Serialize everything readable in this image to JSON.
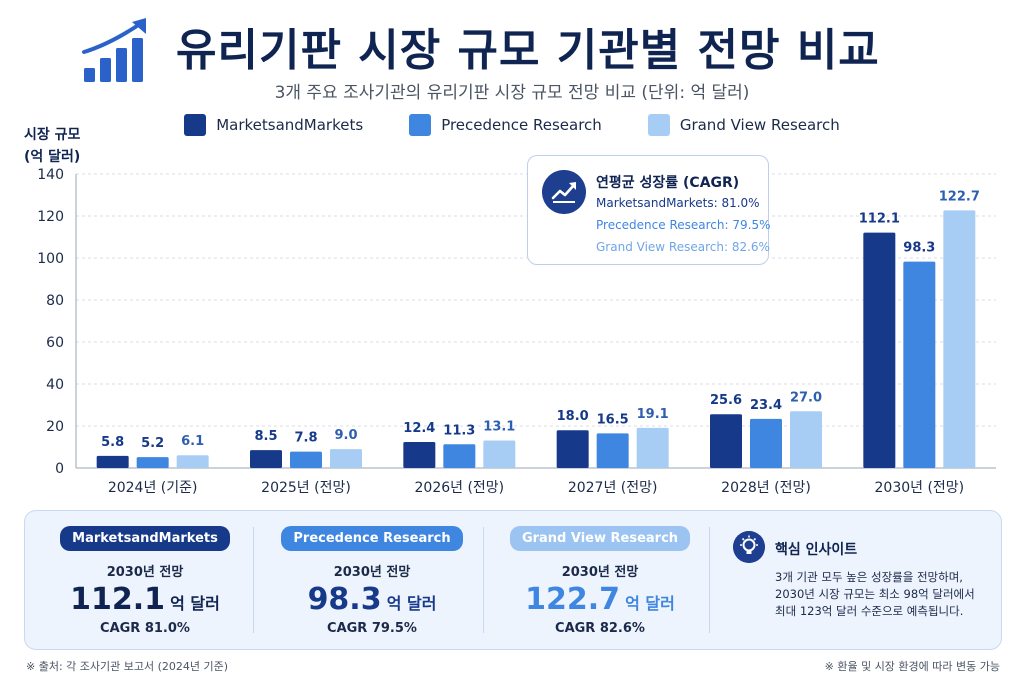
{
  "header": {
    "title": "유리기판 시장 규모 기관별 전망 비교",
    "subtitle": "3개 주요 조사기관의 유리기판 시장 규모 전망 비교 (단위: 억 달러)"
  },
  "colors": {
    "mm": "#16398a",
    "pr": "#3f86e0",
    "gv": "#a8cdf5",
    "title": "#102452"
  },
  "y_axis_label": [
    "시장 규모",
    "(억 달러)"
  ],
  "chart_data": {
    "type": "bar",
    "categories": [
      "2024년 (기준)",
      "2025년 (전망)",
      "2026년 (전망)",
      "2027년 (전망)",
      "2028년 (전망)",
      "2030년 (전망)"
    ],
    "series": [
      {
        "name": "MarketsandMarkets",
        "values": [
          5.8,
          8.5,
          12.4,
          18.0,
          25.6,
          112.1
        ],
        "color": "#16398a"
      },
      {
        "name": "Precedence Research",
        "values": [
          5.2,
          7.8,
          11.3,
          16.5,
          23.4,
          98.3
        ],
        "color": "#3f86e0"
      },
      {
        "name": "Grand View Research",
        "values": [
          6.1,
          9.0,
          13.1,
          19.1,
          27.0,
          122.7
        ],
        "color": "#a8cdf5"
      }
    ],
    "ylim": [
      0,
      140
    ],
    "yticks": [
      0,
      20,
      40,
      60,
      80,
      100,
      120,
      140
    ],
    "grid": true,
    "legend": "top-center"
  },
  "cagr_box": {
    "title": "연평균 성장률 (CAGR)",
    "lines": [
      {
        "text": "MarketsandMarkets: 81.0%",
        "color": "#16398a"
      },
      {
        "text": "Precedence Research: 79.5%",
        "color": "#3f86e0"
      },
      {
        "text": "Grand View Research: 82.6%",
        "color": "#6fa6e6"
      }
    ]
  },
  "summary_cards": [
    {
      "name": "MarketsandMarkets",
      "year": "2030년 전망",
      "value": "112.1",
      "unit": "억 달러",
      "cagr": "CAGR 81.0%",
      "pill_color": "#16398a",
      "value_color": "#102452"
    },
    {
      "name": "Precedence Research",
      "year": "2030년 전망",
      "value": "98.3",
      "unit": "억 달러",
      "cagr": "CAGR 79.5%",
      "pill_color": "#3f86e0",
      "value_color": "#16398a"
    },
    {
      "name": "Grand View Research",
      "year": "2030년 전망",
      "value": "122.7",
      "unit": "억 달러",
      "cagr": "CAGR 82.6%",
      "pill_color": "#9cc4f2",
      "value_color": "#3f86e0"
    }
  ],
  "insight": {
    "title": "핵심 인사이트",
    "lines": [
      "3개 기관 모두 높은 성장률을 전망하며,",
      "2030년 시장 규모는 최소 98억 달러에서",
      "최대 123억 달러 수준으로 예측됩니다."
    ]
  },
  "footer": {
    "source": "※ 출처: 각 조사기관 보고서 (2024년 기준)",
    "note": "※ 환율 및 시장 환경에 따라 변동 가능"
  }
}
